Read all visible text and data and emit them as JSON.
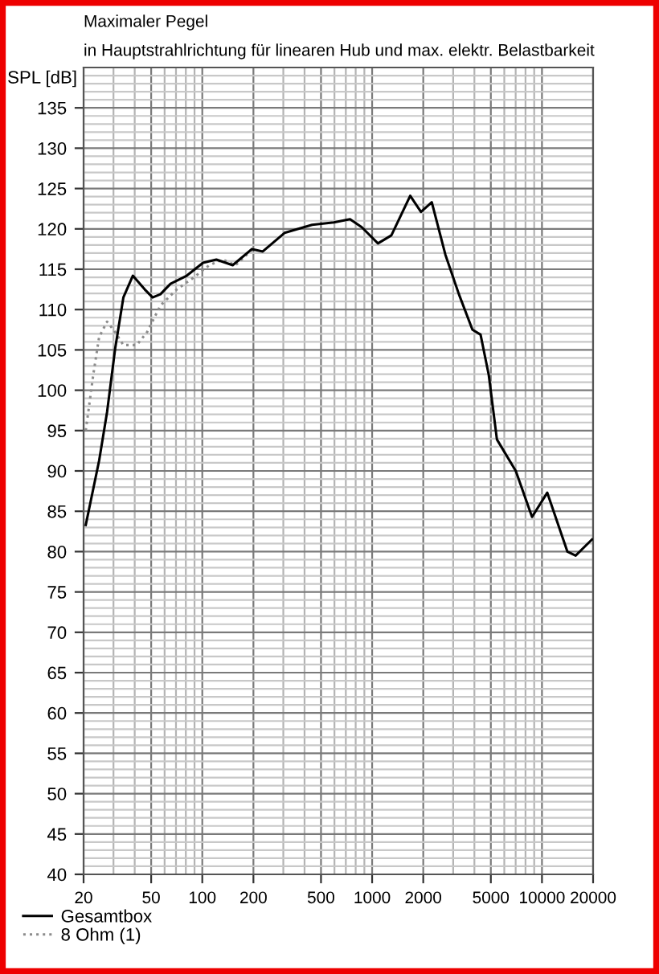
{
  "chart_data": {
    "type": "line",
    "title": "Maximaler Pegel",
    "subtitle": "in Hauptstrahlrichtung für linearen Hub und max. elektr. Belastbarkeit",
    "ylabel": "SPL [dB]",
    "log": "x",
    "xlim": [
      20,
      20000
    ],
    "xticks": [
      20,
      50,
      100,
      200,
      500,
      1000,
      2000,
      5000,
      10000,
      20000
    ],
    "ylim": [
      40,
      140
    ],
    "yticks": [
      40,
      45,
      50,
      55,
      60,
      65,
      70,
      75,
      80,
      85,
      90,
      95,
      100,
      105,
      110,
      115,
      120,
      125,
      130,
      135
    ],
    "grid": true,
    "legend": "bottom left",
    "series": [
      {
        "name": "Gesamtbox",
        "color": "#000000",
        "line_style": "solid",
        "x": [
          20.6,
          24.7,
          27.5,
          30.7,
          34.3,
          39,
          45.8,
          51,
          56.7,
          65,
          81,
          101,
          121,
          151,
          196,
          227,
          305,
          443,
          595,
          741,
          869,
          1082,
          1298,
          1676,
          1939,
          2245,
          2700,
          3243,
          3896,
          4349,
          4860,
          5430,
          7010,
          8740,
          10740,
          14120,
          15780,
          19700
        ],
        "values": [
          83.3,
          91.3,
          97.3,
          105.2,
          111.5,
          114.2,
          112.5,
          111.5,
          111.9,
          113.2,
          114.2,
          115.8,
          116.2,
          115.5,
          117.5,
          117.2,
          119.5,
          120.5,
          120.8,
          121.2,
          120.2,
          118.2,
          119.2,
          124.1,
          122.1,
          123.3,
          116.8,
          111.9,
          107.5,
          106.9,
          101.9,
          93.9,
          90.0,
          84.3,
          87.3,
          80.0,
          79.5,
          81.5
        ]
      },
      {
        "name": "8 Ohm (1)",
        "color": "#8c8c8c",
        "line_style": "dotted",
        "x": [
          20.6,
          22.8,
          24.7,
          27.5,
          30.7,
          34.3,
          41.1,
          47.3,
          56.7,
          70.8,
          88,
          110,
          132,
          157,
          196
        ],
        "values": [
          95.0,
          101.9,
          106.6,
          108.5,
          107.2,
          105.6,
          105.6,
          107.2,
          110.5,
          112.5,
          113.9,
          115.5,
          116.2,
          115.5,
          117.4
        ]
      }
    ]
  }
}
